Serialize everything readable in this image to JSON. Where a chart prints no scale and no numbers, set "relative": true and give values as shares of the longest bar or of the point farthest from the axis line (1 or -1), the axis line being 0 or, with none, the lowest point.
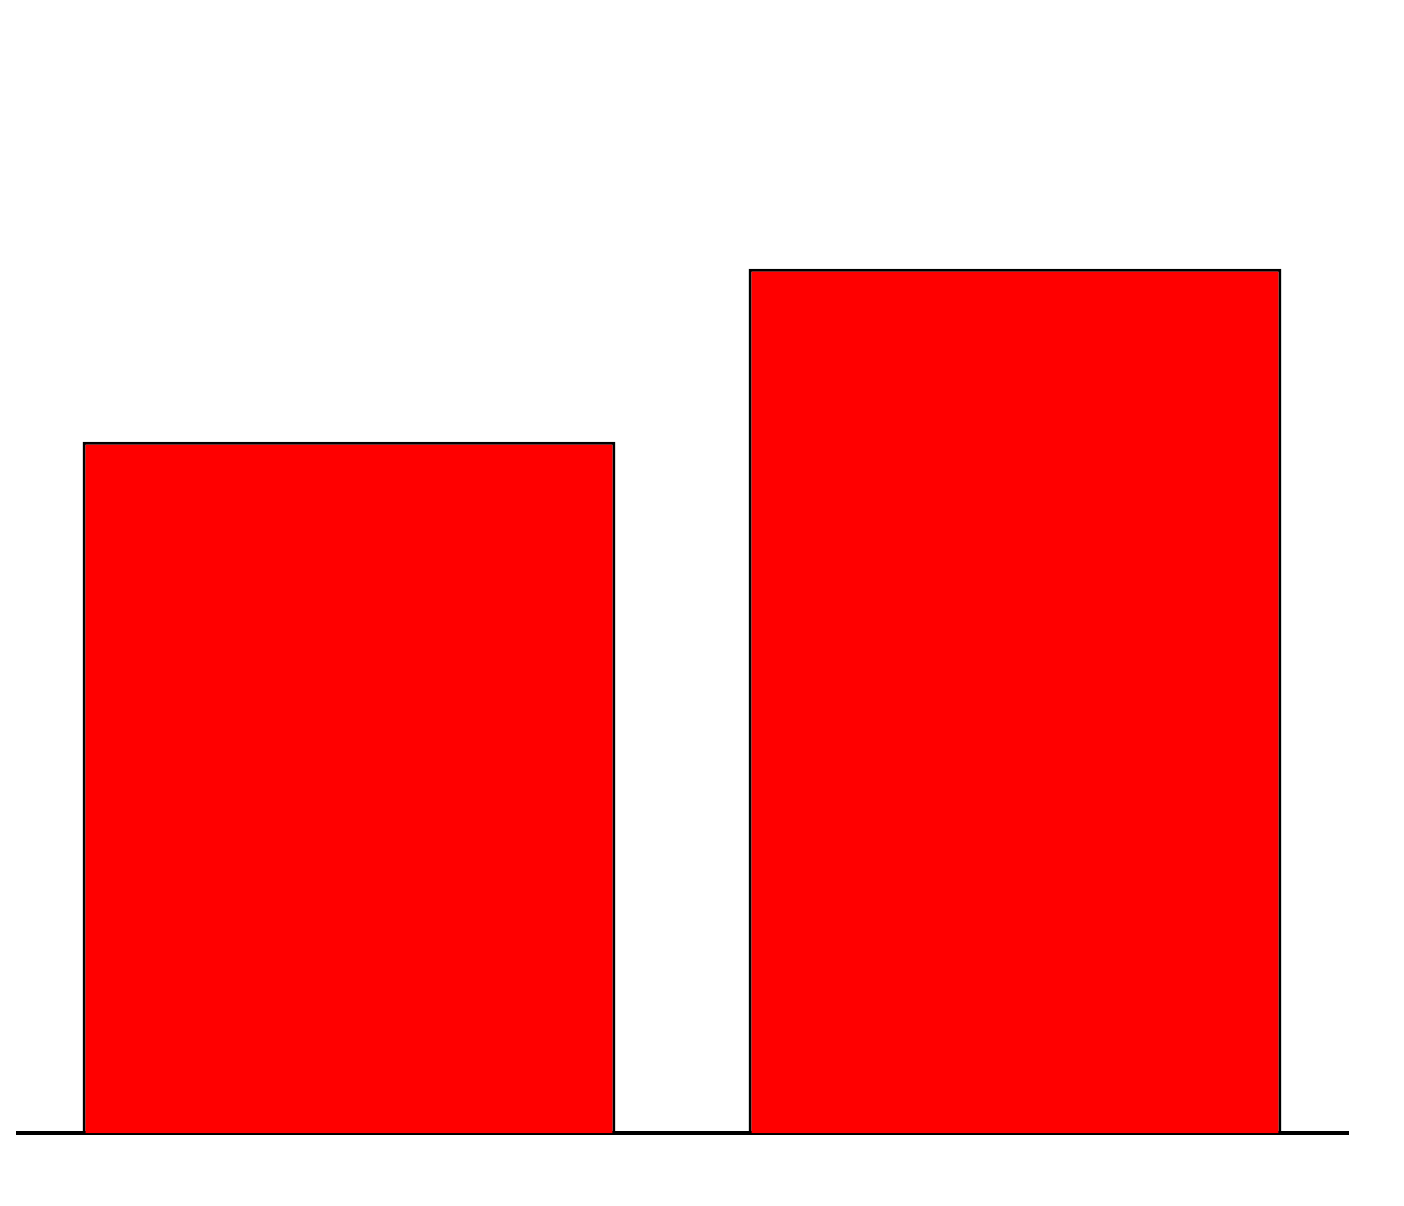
{
  "chart_data": {
    "type": "bar",
    "categories": [
      null,
      null
    ],
    "relative": true,
    "series": [
      {
        "color": "#ff0000",
        "values": [
          0.8,
          1
        ]
      }
    ],
    "grid": false
  }
}
